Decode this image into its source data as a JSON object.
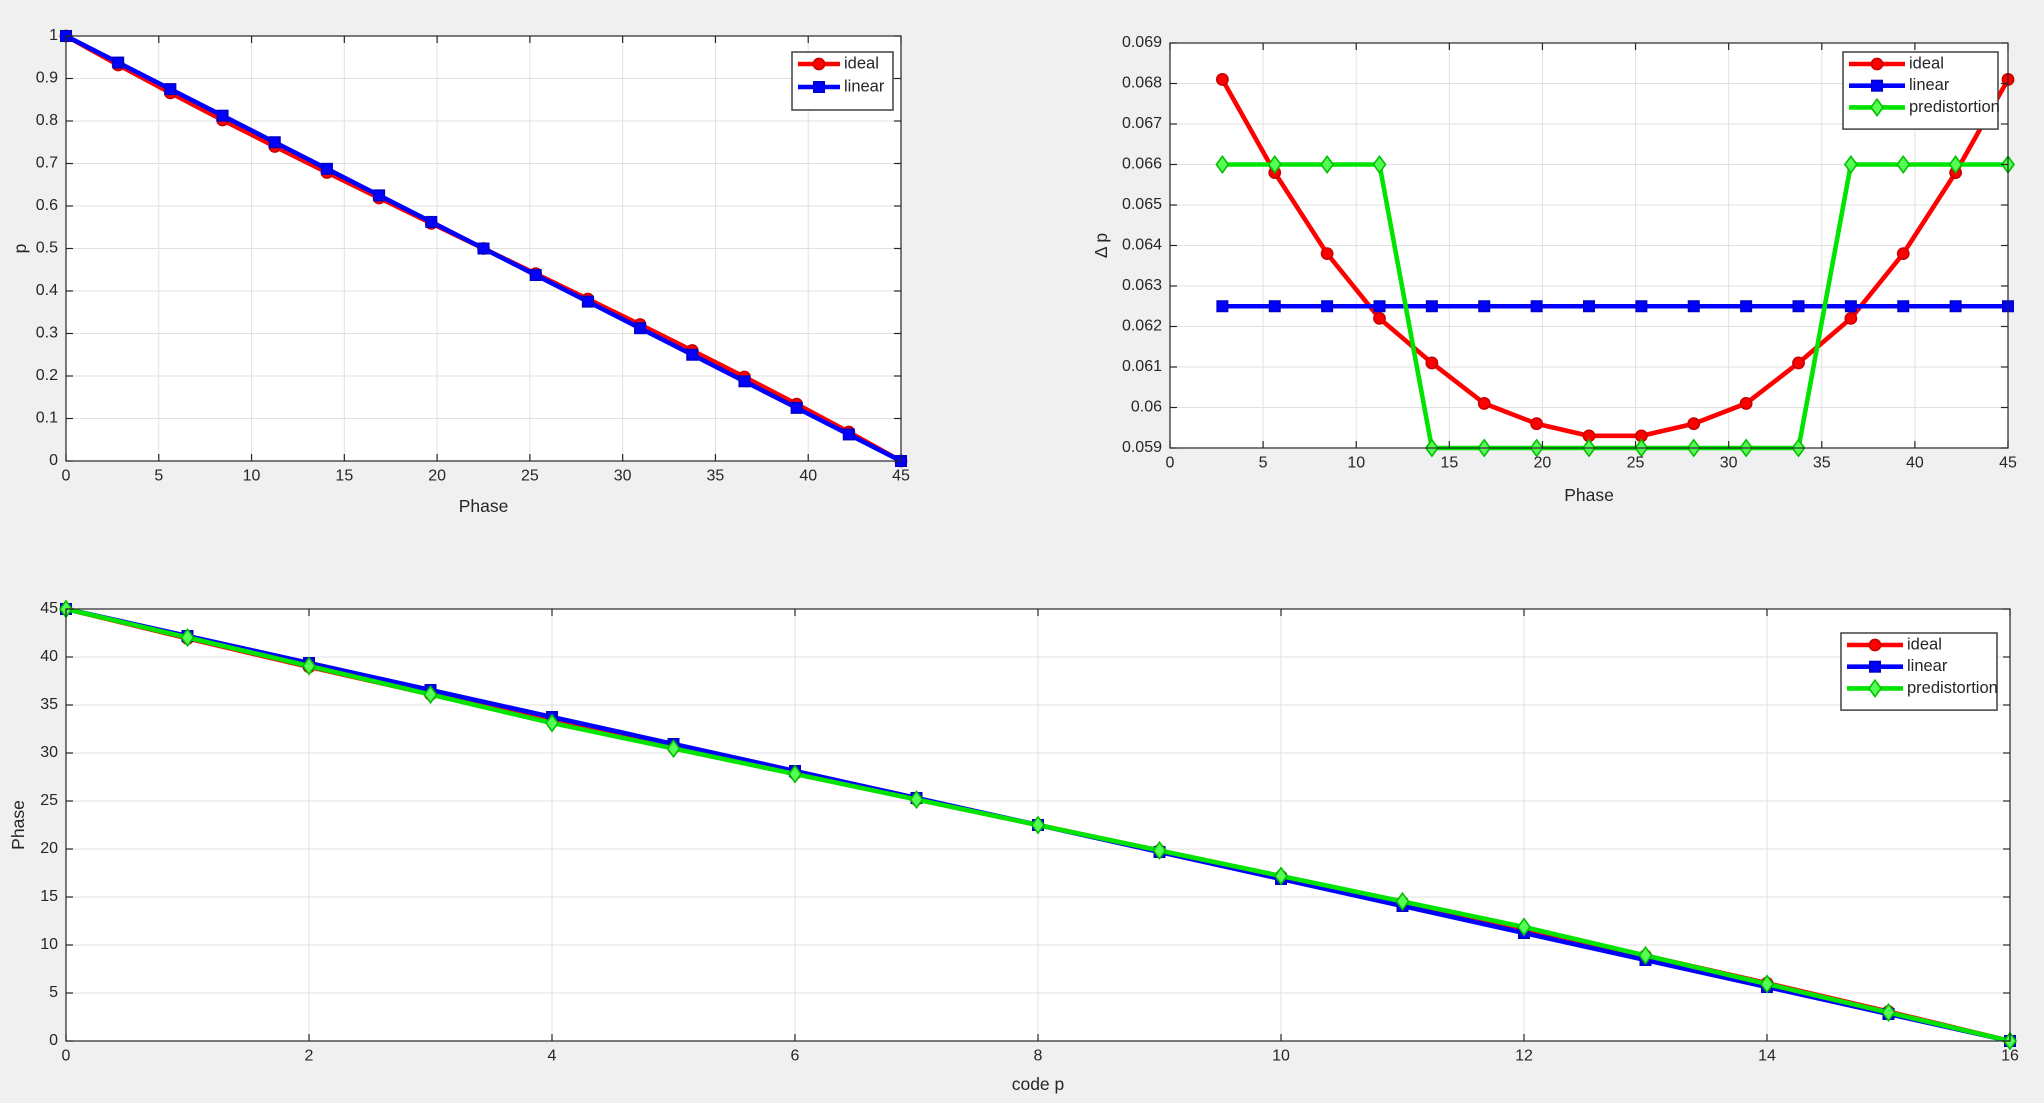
{
  "figure": {
    "background_color": "#F0F0F0",
    "plot_background_color": "#FFFFFF",
    "grid_color": "#E1E1E1",
    "axes_color": "#262626",
    "text_color": "#262626",
    "legend_border_color": "#404040"
  },
  "chart_data": [
    {
      "id": "p_vs_phase",
      "type": "line",
      "title": "",
      "xlabel": "Phase",
      "ylabel": "p",
      "xlim": [
        0,
        45
      ],
      "ylim": [
        0,
        1
      ],
      "xticks": [
        0,
        5,
        10,
        15,
        20,
        25,
        30,
        35,
        40,
        45
      ],
      "xtick_labels": [
        "0",
        "5",
        "10",
        "15",
        "20",
        "25",
        "30",
        "35",
        "40",
        "45"
      ],
      "yticks": [
        0,
        0.1,
        0.2,
        0.3,
        0.4,
        0.5,
        0.6,
        0.7,
        0.8,
        0.9,
        1
      ],
      "ytick_labels": [
        "0",
        "0.1",
        "0.2",
        "0.3",
        "0.4",
        "0.5",
        "0.6",
        "0.7",
        "0.8",
        "0.9",
        "1"
      ],
      "grid": true,
      "legend": {
        "position": "top-right",
        "entries": [
          "ideal",
          "linear"
        ]
      },
      "series": [
        {
          "name": "ideal",
          "marker": "circle",
          "line_color": "#FF0000",
          "face_color": "#FF0000",
          "edge_color": "#C80000",
          "x": [
            0,
            2.8125,
            5.625,
            8.4375,
            11.25,
            14.0625,
            16.875,
            19.6875,
            22.5,
            25.3125,
            28.125,
            30.9375,
            33.75,
            36.5625,
            39.375,
            42.1875,
            45
          ],
          "y": [
            1,
            0.9319,
            0.8661,
            0.8023,
            0.7401,
            0.679,
            0.6189,
            0.5593,
            0.5,
            0.4407,
            0.3811,
            0.321,
            0.2599,
            0.1977,
            0.1339,
            0.0681,
            0
          ]
        },
        {
          "name": "linear",
          "marker": "square",
          "line_color": "#0000FF",
          "face_color": "#0000FF",
          "edge_color": "#0000C8",
          "x": [
            0,
            2.8125,
            5.625,
            8.4375,
            11.25,
            14.0625,
            16.875,
            19.6875,
            22.5,
            25.3125,
            28.125,
            30.9375,
            33.75,
            36.5625,
            39.375,
            42.1875,
            45
          ],
          "y": [
            1,
            0.9375,
            0.875,
            0.8125,
            0.75,
            0.6875,
            0.625,
            0.5625,
            0.5,
            0.4375,
            0.375,
            0.3125,
            0.25,
            0.1875,
            0.125,
            0.0625,
            0
          ]
        }
      ]
    },
    {
      "id": "dp_vs_phase",
      "type": "line",
      "title": "",
      "xlabel": "Phase",
      "ylabel": "Δ p",
      "xlim": [
        0,
        45
      ],
      "ylim": [
        0.059,
        0.069
      ],
      "xticks": [
        0,
        5,
        10,
        15,
        20,
        25,
        30,
        35,
        40,
        45
      ],
      "xtick_labels": [
        "0",
        "5",
        "10",
        "15",
        "20",
        "25",
        "30",
        "35",
        "40",
        "45"
      ],
      "yticks": [
        0.059,
        0.06,
        0.061,
        0.062,
        0.063,
        0.064,
        0.065,
        0.066,
        0.067,
        0.068,
        0.069
      ],
      "ytick_labels": [
        "0.059",
        "0.06",
        "0.061",
        "0.062",
        "0.063",
        "0.064",
        "0.065",
        "0.066",
        "0.067",
        "0.068",
        "0.069"
      ],
      "grid": true,
      "legend": {
        "position": "top-right",
        "entries": [
          "ideal",
          "linear",
          "predistortion"
        ]
      },
      "series": [
        {
          "name": "ideal",
          "marker": "circle",
          "line_color": "#FF0000",
          "face_color": "#FF0000",
          "edge_color": "#C80000",
          "x": [
            2.8125,
            5.625,
            8.4375,
            11.25,
            14.0625,
            16.875,
            19.6875,
            22.5,
            25.3125,
            28.125,
            30.9375,
            33.75,
            36.5625,
            39.375,
            42.1875,
            45
          ],
          "y": [
            0.0681,
            0.0658,
            0.0638,
            0.0622,
            0.0611,
            0.0601,
            0.0596,
            0.0593,
            0.0593,
            0.0596,
            0.0601,
            0.0611,
            0.0622,
            0.0638,
            0.0658,
            0.0681
          ]
        },
        {
          "name": "linear",
          "marker": "square",
          "line_color": "#0000FF",
          "face_color": "#0000FF",
          "edge_color": "#0000C8",
          "x": [
            2.8125,
            5.625,
            8.4375,
            11.25,
            14.0625,
            16.875,
            19.6875,
            22.5,
            25.3125,
            28.125,
            30.9375,
            33.75,
            36.5625,
            39.375,
            42.1875,
            45
          ],
          "y": [
            0.0625,
            0.0625,
            0.0625,
            0.0625,
            0.0625,
            0.0625,
            0.0625,
            0.0625,
            0.0625,
            0.0625,
            0.0625,
            0.0625,
            0.0625,
            0.0625,
            0.0625,
            0.0625
          ]
        },
        {
          "name": "predistortion",
          "marker": "diamond",
          "line_color": "#00E400",
          "face_color": "#55FF55",
          "edge_color": "#00C000",
          "x": [
            2.8125,
            5.625,
            8.4375,
            11.25,
            14.0625,
            16.875,
            19.6875,
            22.5,
            25.3125,
            28.125,
            30.9375,
            33.75,
            36.5625,
            39.375,
            42.1875,
            45
          ],
          "y": [
            0.066,
            0.066,
            0.066,
            0.066,
            0.059,
            0.059,
            0.059,
            0.059,
            0.059,
            0.059,
            0.059,
            0.059,
            0.066,
            0.066,
            0.066,
            0.066
          ]
        }
      ]
    },
    {
      "id": "phase_vs_code",
      "type": "line",
      "title": "",
      "xlabel": "code p",
      "ylabel": "Phase",
      "xlim": [
        0,
        16
      ],
      "ylim": [
        0,
        45
      ],
      "xticks": [
        0,
        2,
        4,
        6,
        8,
        10,
        12,
        14,
        16
      ],
      "xtick_labels": [
        "0",
        "2",
        "4",
        "6",
        "8",
        "10",
        "12",
        "14",
        "16"
      ],
      "yticks": [
        0,
        5,
        10,
        15,
        20,
        25,
        30,
        35,
        40,
        45
      ],
      "ytick_labels": [
        "0",
        "5",
        "10",
        "15",
        "20",
        "25",
        "30",
        "35",
        "40",
        "45"
      ],
      "grid": true,
      "legend": {
        "position": "top-right",
        "entries": [
          "ideal",
          "linear",
          "predistortion"
        ]
      },
      "series": [
        {
          "name": "ideal",
          "marker": "circle",
          "line_color": "#FF0000",
          "face_color": "#FF0000",
          "edge_color": "#C80000",
          "x": [
            0,
            1,
            2,
            3,
            4,
            5,
            6,
            7,
            8,
            9,
            10,
            11,
            12,
            13,
            14,
            15,
            16
          ],
          "y": [
            45,
            41.936,
            38.975,
            36.104,
            33.305,
            30.555,
            27.851,
            25.169,
            22.5,
            19.832,
            17.15,
            14.445,
            11.696,
            8.897,
            6.026,
            3.065,
            0
          ]
        },
        {
          "name": "linear",
          "marker": "square",
          "line_color": "#0000FF",
          "face_color": "#0000FF",
          "edge_color": "#0000C8",
          "x": [
            0,
            1,
            2,
            3,
            4,
            5,
            6,
            7,
            8,
            9,
            10,
            11,
            12,
            13,
            14,
            15,
            16
          ],
          "y": [
            45,
            42.1875,
            39.375,
            36.5625,
            33.75,
            30.9375,
            28.125,
            25.3125,
            22.5,
            19.6875,
            16.875,
            14.0625,
            11.25,
            8.4375,
            5.625,
            2.8125,
            0
          ]
        },
        {
          "name": "predistortion",
          "marker": "diamond",
          "line_color": "#00E400",
          "face_color": "#55FF55",
          "edge_color": "#00C000",
          "x": [
            0,
            1,
            2,
            3,
            4,
            5,
            6,
            7,
            8,
            9,
            10,
            11,
            12,
            13,
            14,
            15,
            16
          ],
          "y": [
            45,
            42.03,
            39.06,
            36.09,
            33.12,
            30.465,
            27.81,
            25.155,
            22.5,
            19.845,
            17.19,
            14.535,
            11.88,
            8.91,
            5.94,
            2.97,
            0
          ]
        }
      ]
    }
  ]
}
